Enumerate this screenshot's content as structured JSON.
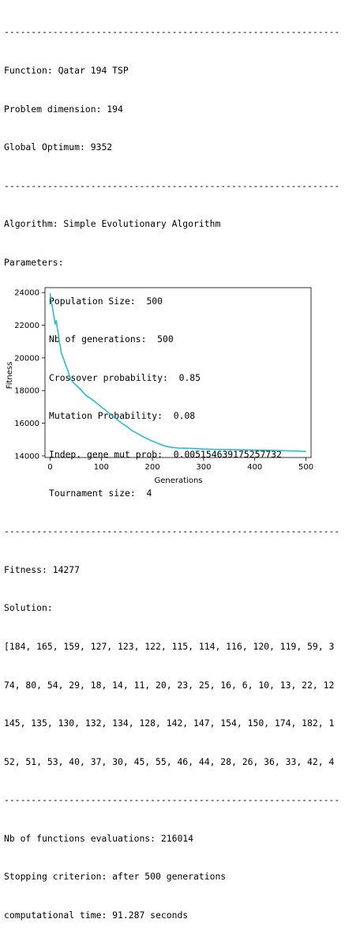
{
  "separator": "--------------------------------------------------------------",
  "header": {
    "function": "Function: Qatar 194 TSP",
    "dimension": "Problem dimension: 194",
    "optimum": "Global Optimum: 9352"
  },
  "algorithm": {
    "name": "Algorithm: Simple Evolutionary Algorithm",
    "params_title": "Parameters:",
    "params": [
      "Population Size:  500",
      "Nb of generations:  500",
      "Crossover probability:  0.85",
      "Mutation Probability:  0.08",
      "Indep. gene mut prob:  0.005154639175257732",
      "Tournament size:  4"
    ]
  },
  "result": {
    "fitness": "Fitness: 14277",
    "solution_title": "Solution:",
    "solution_lines": [
      "[184, 165, 159, 127, 123, 122, 115, 114, 116, 120, 119, 59, 3",
      "74, 80, 54, 29, 18, 14, 11, 20, 23, 25, 16, 6, 10, 13, 22, 12",
      "145, 135, 130, 132, 134, 128, 142, 147, 154, 150, 174, 182, 1",
      "52, 51, 53, 40, 37, 30, 45, 55, 46, 44, 28, 26, 36, 33, 42, 4"
    ]
  },
  "summary": {
    "evaluations": "Nb of functions evaluations: 216014",
    "stopping": "Stopping criterion: after 500 generations",
    "time": "computational time: 91.287 seconds"
  },
  "colors": {
    "line": "#17becf"
  },
  "chart_data": {
    "type": "line",
    "title": "",
    "xlabel": "Generations",
    "ylabel": "Fitness",
    "xlim": [
      -10,
      510
    ],
    "ylim": [
      13900,
      24300
    ],
    "xticks": [
      0,
      100,
      200,
      300,
      400,
      500
    ],
    "yticks": [
      14000,
      16000,
      18000,
      20000,
      22000,
      24000
    ],
    "grid": false,
    "series": [
      {
        "x": [
          0,
          2,
          4,
          6,
          8,
          10,
          12,
          14,
          16,
          18,
          20,
          22,
          25,
          28,
          30,
          35,
          40,
          45,
          50,
          55,
          60,
          70,
          80,
          90,
          100,
          110,
          120,
          130,
          140,
          150,
          160,
          170,
          180,
          190,
          200,
          210,
          220,
          230,
          240,
          250,
          275,
          300,
          325,
          350,
          375,
          400,
          425,
          450,
          475,
          500
        ],
        "y": [
          23950,
          23500,
          23200,
          22800,
          22400,
          22100,
          22300,
          21800,
          21500,
          21000,
          20700,
          20300,
          20050,
          19800,
          19600,
          19200,
          18700,
          18500,
          18350,
          18200,
          18050,
          17700,
          17500,
          17250,
          17000,
          16750,
          16500,
          16250,
          16000,
          15800,
          15550,
          15380,
          15200,
          15050,
          14900,
          14780,
          14650,
          14560,
          14520,
          14480,
          14460,
          14420,
          14400,
          14390,
          14370,
          14350,
          14340,
          14320,
          14300,
          14277
        ]
      }
    ]
  }
}
